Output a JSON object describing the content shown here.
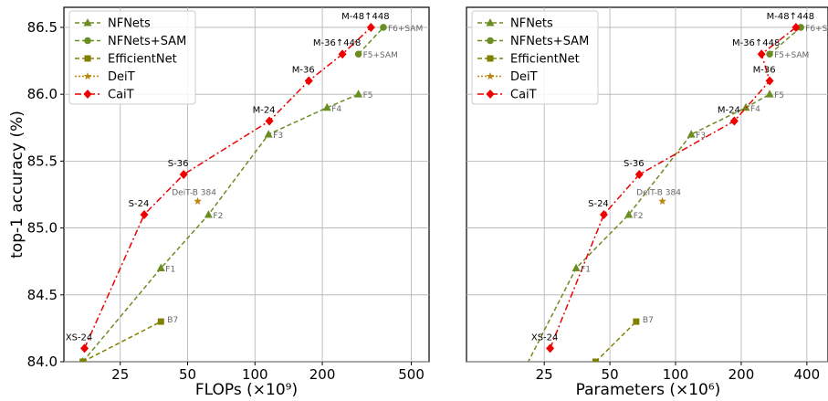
{
  "chart_data": [
    {
      "type": "line",
      "xscale": "log",
      "xlabel": "FLOPs (×10⁹)",
      "ylabel": "top-1 accuracy (%)",
      "xlim": [
        14,
        600
      ],
      "ylim": [
        84.0,
        86.65
      ],
      "xticks": [
        25,
        50,
        100,
        200,
        500
      ],
      "yticks": [
        "84.0",
        "84.5",
        "85.0",
        "85.5",
        "86.0",
        "86.5"
      ],
      "grid": true,
      "legend_position": "top-left",
      "series": [
        {
          "name": "NFNets",
          "color": "#6b8e23",
          "marker": "triangle",
          "line": "dashed",
          "points": [
            [
              17,
              84.0
            ],
            [
              38,
              84.7
            ],
            [
              62,
              85.1
            ],
            [
              115,
              85.7
            ],
            [
              210,
              85.9
            ],
            [
              290,
              86.0
            ]
          ],
          "labels": [
            "",
            "F1",
            "F2",
            "F3",
            "F4",
            "F5"
          ]
        },
        {
          "name": "NFNets+SAM",
          "color": "#6b8e23",
          "marker": "circle",
          "line": "dashed",
          "points": [
            [
              290,
              86.3
            ],
            [
              375,
              86.5
            ]
          ],
          "labels": [
            "F5+SAM",
            "F6+SAM"
          ]
        },
        {
          "name": "EfficientNet",
          "color": "#808000",
          "marker": "square",
          "line": "dashed",
          "points": [
            [
              17,
              84.0
            ],
            [
              38,
              84.3
            ]
          ],
          "labels": [
            "",
            "B7"
          ]
        },
        {
          "name": "DeiT",
          "color": "#b8860b",
          "marker": "star",
          "line": "dotted",
          "points": [
            [
              55.5,
              85.2
            ]
          ],
          "labels": [
            "DeiT-B 384"
          ]
        },
        {
          "name": "CaiT",
          "color": "#ee0000",
          "marker": "diamond",
          "line": "dashdot",
          "points": [
            [
              17.3,
              84.1
            ],
            [
              32,
              85.1
            ],
            [
              48,
              85.4
            ],
            [
              116,
              85.8
            ],
            [
              174,
              86.1
            ],
            [
              246,
              86.3
            ],
            [
              330,
              86.5
            ]
          ],
          "labels": [
            "XS-24",
            "S-24",
            "S-36",
            "M-24",
            "M-36",
            "M-36↑448",
            "M-48↑448"
          ]
        }
      ]
    },
    {
      "type": "line",
      "xscale": "log",
      "xlabel": "Parameters (×10⁶)",
      "ylabel": "",
      "xlim": [
        11,
        500
      ],
      "ylim": [
        84.0,
        86.65
      ],
      "xticks": [
        25,
        50,
        100,
        200,
        400
      ],
      "yticks": [],
      "grid": true,
      "legend_position": "top-left",
      "series": [
        {
          "name": "NFNets",
          "color": "#6b8e23",
          "marker": "triangle",
          "line": "dashed",
          "points": [
            [
              17,
              83.7
            ],
            [
              35,
              84.7
            ],
            [
              61,
              85.1
            ],
            [
              118,
              85.7
            ],
            [
              210,
              85.9
            ],
            [
              270,
              86.0
            ]
          ],
          "labels": [
            "",
            "F1",
            "F2",
            "F3",
            "F4",
            "F5"
          ]
        },
        {
          "name": "NFNets+SAM",
          "color": "#6b8e23",
          "marker": "circle",
          "line": "dashed",
          "points": [
            [
              270,
              86.3
            ],
            [
              375,
              86.5
            ]
          ],
          "labels": [
            "F5+SAM",
            "F6+SAM"
          ]
        },
        {
          "name": "EfficientNet",
          "color": "#808000",
          "marker": "square",
          "line": "dashed",
          "points": [
            [
              43,
              84.0
            ],
            [
              66,
              84.3
            ]
          ],
          "labels": [
            "",
            "B7"
          ]
        },
        {
          "name": "DeiT",
          "color": "#b8860b",
          "marker": "star",
          "line": "dotted",
          "points": [
            [
              87,
              85.2
            ]
          ],
          "labels": [
            "DeiT-B 384"
          ]
        },
        {
          "name": "CaiT",
          "color": "#ee0000",
          "marker": "diamond",
          "line": "dashdot",
          "points": [
            [
              26.6,
              84.1
            ],
            [
              46.9,
              85.1
            ],
            [
              68.2,
              85.4
            ],
            [
              185.9,
              85.8
            ],
            [
              270.1,
              86.1
            ],
            [
              247.8,
              86.3
            ],
            [
              356.5,
              86.5
            ]
          ],
          "labels": [
            "XS-24",
            "S-24",
            "S-36",
            "M-24",
            "M-36",
            "M-36↑448",
            "M-48↑448"
          ]
        }
      ]
    }
  ]
}
